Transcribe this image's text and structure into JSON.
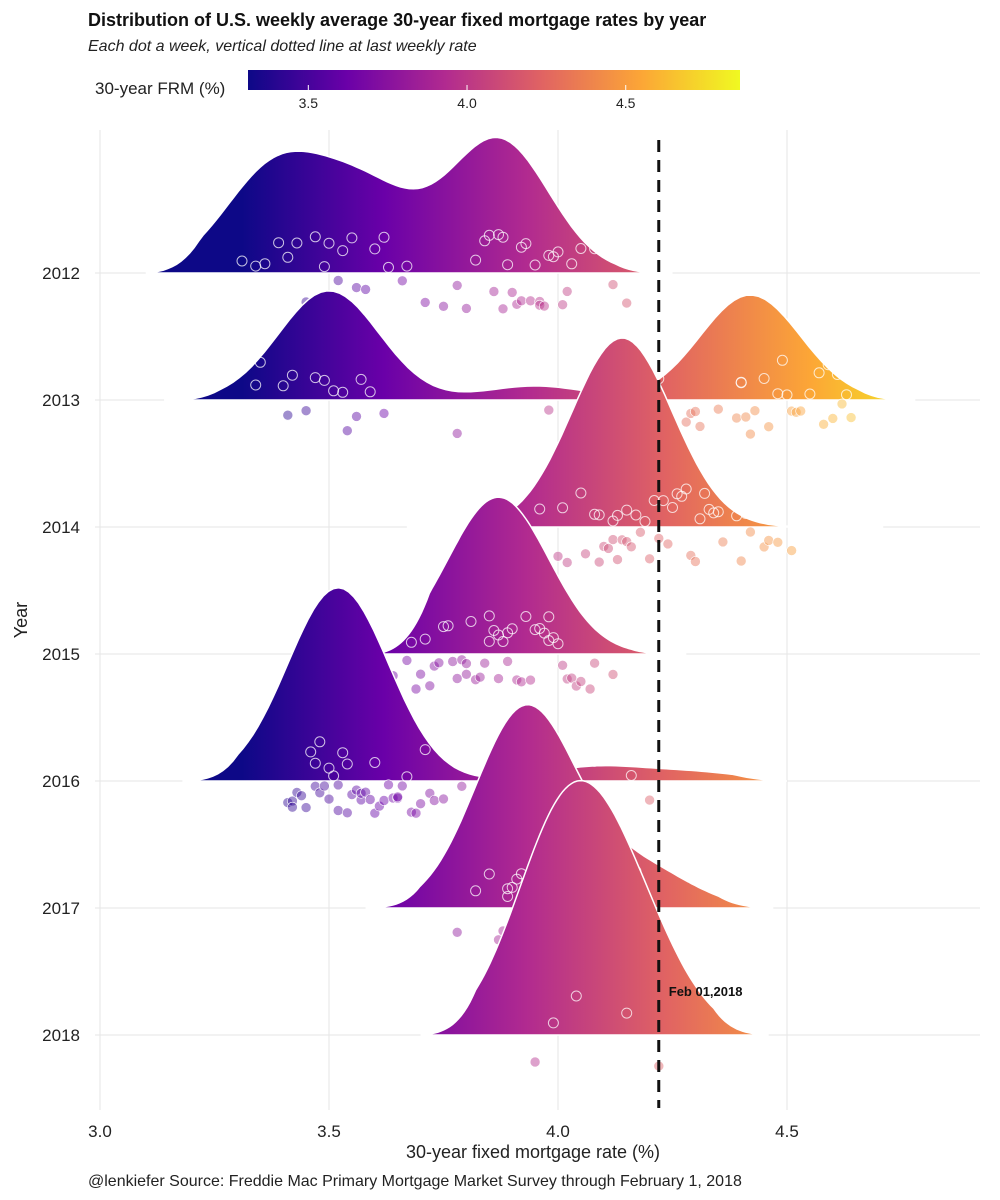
{
  "chart_data": {
    "type": "ridgeline",
    "title": "Distribution of U.S. weekly average 30-year fixed mortgage rates by year",
    "subtitle": "Each dot a week, vertical dotted line at last weekly rate",
    "caption": "@lenkiefer Source: Freddie Mac Primary Mortgage Market Survey through February 1, 2018",
    "xlabel": "30-year fixed mortgage rate (%)",
    "ylabel": "Year",
    "xlim": [
      2.97,
      4.92
    ],
    "x_ticks": [
      3.0,
      3.5,
      4.0,
      4.5
    ],
    "x_tick_labels": [
      "3.0",
      "3.5",
      "4.0",
      "4.5"
    ],
    "legend": {
      "title": "30-year FRM (%)",
      "range": [
        3.31,
        4.86
      ],
      "ticks": [
        3.5,
        4.0,
        4.5
      ],
      "tick_labels": [
        "3.5",
        "4.0",
        "4.5"
      ],
      "colormap": [
        "#0d0887",
        "#6a00a8",
        "#b12a90",
        "#e16462",
        "#fca636",
        "#f0f921"
      ]
    },
    "reference_line": {
      "x": 4.22,
      "label": "Feb 01,2018"
    },
    "series": [
      {
        "year": "2012",
        "density_range": [
          3.1,
          4.25
        ],
        "density_peaks": [
          [
            3.38,
            0.72
          ],
          [
            3.58,
            0.56
          ],
          [
            3.87,
            0.95
          ]
        ],
        "weekly_rates": [
          3.31,
          3.34,
          3.36,
          3.39,
          3.41,
          3.43,
          3.45,
          3.47,
          3.49,
          3.5,
          3.52,
          3.53,
          3.55,
          3.56,
          3.58,
          3.6,
          3.62,
          3.63,
          3.66,
          3.67,
          3.71,
          3.75,
          3.78,
          3.8,
          3.82,
          3.84,
          3.85,
          3.86,
          3.87,
          3.88,
          3.88,
          3.89,
          3.9,
          3.91,
          3.92,
          3.92,
          3.93,
          3.94,
          3.95,
          3.96,
          3.96,
          3.97,
          3.98,
          3.99,
          4.0,
          4.01,
          4.02,
          4.03,
          4.05,
          4.08,
          4.12,
          4.15
        ]
      },
      {
        "year": "2013",
        "density_range": [
          3.14,
          4.78
        ],
        "density_peaks": [
          [
            3.5,
            0.78
          ],
          [
            3.95,
            0.1
          ],
          [
            4.42,
            0.75
          ]
        ],
        "weekly_rates": [
          3.34,
          3.35,
          3.4,
          3.41,
          3.42,
          3.45,
          3.47,
          3.49,
          3.51,
          3.53,
          3.54,
          3.56,
          3.57,
          3.59,
          3.62,
          3.78,
          3.91,
          3.98,
          4.07,
          4.12,
          4.17,
          4.22,
          4.28,
          4.29,
          4.3,
          4.31,
          4.35,
          4.39,
          4.4,
          4.4,
          4.41,
          4.42,
          4.43,
          4.45,
          4.46,
          4.48,
          4.49,
          4.5,
          4.51,
          4.52,
          4.53,
          4.55,
          4.57,
          4.58,
          4.59,
          4.6,
          4.61,
          4.62,
          4.63,
          4.64,
          4.65,
          4.66
        ]
      },
      {
        "year": "2014",
        "density_range": [
          3.67,
          4.71
        ],
        "density_peaks": [
          [
            4.14,
            1.35
          ]
        ],
        "weekly_rates": [
          3.96,
          4.0,
          4.01,
          4.02,
          4.05,
          4.06,
          4.08,
          4.09,
          4.09,
          4.1,
          4.11,
          4.12,
          4.12,
          4.13,
          4.13,
          4.14,
          4.15,
          4.15,
          4.16,
          4.17,
          4.18,
          4.19,
          4.2,
          4.21,
          4.22,
          4.23,
          4.24,
          4.25,
          4.26,
          4.27,
          4.28,
          4.29,
          4.3,
          4.31,
          4.32,
          4.33,
          4.34,
          4.35,
          4.36,
          4.37,
          4.38,
          4.39,
          4.4,
          4.4,
          4.41,
          4.42,
          4.43,
          4.44,
          4.45,
          4.46,
          4.48,
          4.51
        ]
      },
      {
        "year": "2015",
        "density_range": [
          3.6,
          4.28
        ],
        "density_peaks": [
          [
            3.87,
            1.12
          ]
        ],
        "weekly_rates": [
          3.59,
          3.62,
          3.64,
          3.66,
          3.67,
          3.68,
          3.69,
          3.7,
          3.71,
          3.72,
          3.73,
          3.74,
          3.75,
          3.76,
          3.77,
          3.78,
          3.79,
          3.8,
          3.8,
          3.81,
          3.82,
          3.83,
          3.84,
          3.85,
          3.85,
          3.86,
          3.87,
          3.87,
          3.88,
          3.89,
          3.89,
          3.9,
          3.91,
          3.92,
          3.93,
          3.94,
          3.95,
          3.96,
          3.97,
          3.98,
          3.98,
          3.99,
          4.0,
          4.01,
          4.02,
          4.03,
          4.04,
          4.05,
          4.07,
          4.08,
          4.09,
          4.12
        ]
      },
      {
        "year": "2016",
        "density_range": [
          3.18,
          4.5
        ],
        "density_peaks": [
          [
            3.52,
            1.38
          ],
          [
            4.08,
            0.1
          ],
          [
            4.3,
            0.06
          ]
        ],
        "weekly_rates": [
          3.41,
          3.42,
          3.42,
          3.43,
          3.44,
          3.45,
          3.46,
          3.47,
          3.47,
          3.48,
          3.48,
          3.49,
          3.5,
          3.5,
          3.51,
          3.52,
          3.52,
          3.53,
          3.54,
          3.54,
          3.55,
          3.56,
          3.57,
          3.57,
          3.58,
          3.59,
          3.6,
          3.6,
          3.61,
          3.62,
          3.63,
          3.64,
          3.65,
          3.65,
          3.66,
          3.67,
          3.68,
          3.69,
          3.7,
          3.71,
          3.72,
          3.73,
          3.75,
          3.77,
          3.79,
          3.83,
          3.97,
          4.03,
          4.08,
          4.16,
          4.2,
          4.32
        ]
      },
      {
        "year": "2017",
        "density_range": [
          3.58,
          4.47
        ],
        "density_peaks": [
          [
            3.93,
            1.43
          ],
          [
            4.18,
            0.28
          ]
        ],
        "weekly_rates": [
          3.78,
          3.82,
          3.85,
          3.87,
          3.88,
          3.89,
          3.89,
          3.9,
          3.9,
          3.91,
          3.91,
          3.92,
          3.92,
          3.93,
          3.93,
          3.94,
          3.94,
          3.95,
          3.95,
          3.96,
          3.96,
          3.97,
          3.97,
          3.98,
          3.98,
          3.99,
          3.99,
          4.0,
          4.0,
          4.01,
          4.02,
          4.02,
          4.03,
          4.03,
          4.04,
          4.05,
          4.05,
          4.06,
          4.07,
          4.08,
          4.08,
          4.09,
          4.1,
          4.1,
          4.11,
          4.12,
          4.13,
          4.14,
          4.15,
          4.17,
          4.19,
          4.2
        ]
      },
      {
        "year": "2018",
        "density_range": [
          3.7,
          4.46
        ],
        "density_peaks": [
          [
            4.01,
            1.39
          ],
          [
            4.15,
            0.78
          ]
        ],
        "weekly_rates": [
          3.95,
          3.99,
          4.04,
          4.15,
          4.22
        ]
      }
    ]
  }
}
